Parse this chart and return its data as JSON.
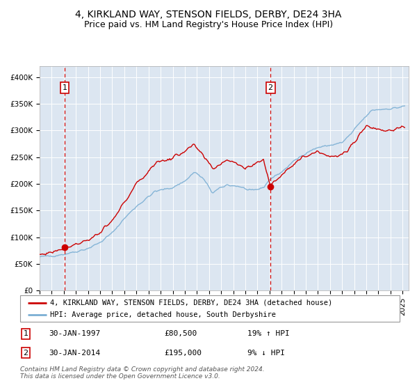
{
  "title": "4, KIRKLAND WAY, STENSON FIELDS, DERBY, DE24 3HA",
  "subtitle": "Price paid vs. HM Land Registry's House Price Index (HPI)",
  "legend_line1": "4, KIRKLAND WAY, STENSON FIELDS, DERBY, DE24 3HA (detached house)",
  "legend_line2": "HPI: Average price, detached house, South Derbyshire",
  "footnote1": "Contains HM Land Registry data © Crown copyright and database right 2024.",
  "footnote2": "This data is licensed under the Open Government Licence v3.0.",
  "sale1_date": "30-JAN-1997",
  "sale1_price": "£80,500",
  "sale1_hpi": "19% ↑ HPI",
  "sale2_date": "30-JAN-2014",
  "sale2_price": "£195,000",
  "sale2_hpi": "9% ↓ HPI",
  "sale1_year": 1997.08,
  "sale2_year": 2014.08,
  "sale1_value": 80500,
  "sale2_value": 195000,
  "ylim": [
    0,
    420000
  ],
  "xlim_start": 1995.0,
  "xlim_end": 2025.5,
  "background_color": "#dce6f1",
  "grid_color": "#ffffff",
  "hpi_line_color": "#7bafd4",
  "price_line_color": "#cc0000",
  "dashed_line_color": "#cc0000",
  "marker_color": "#cc0000",
  "title_fontsize": 10,
  "subtitle_fontsize": 9,
  "tick_fontsize": 7.5,
  "legend_fontsize": 7.5,
  "table_fontsize": 8,
  "footnote_fontsize": 6.5
}
